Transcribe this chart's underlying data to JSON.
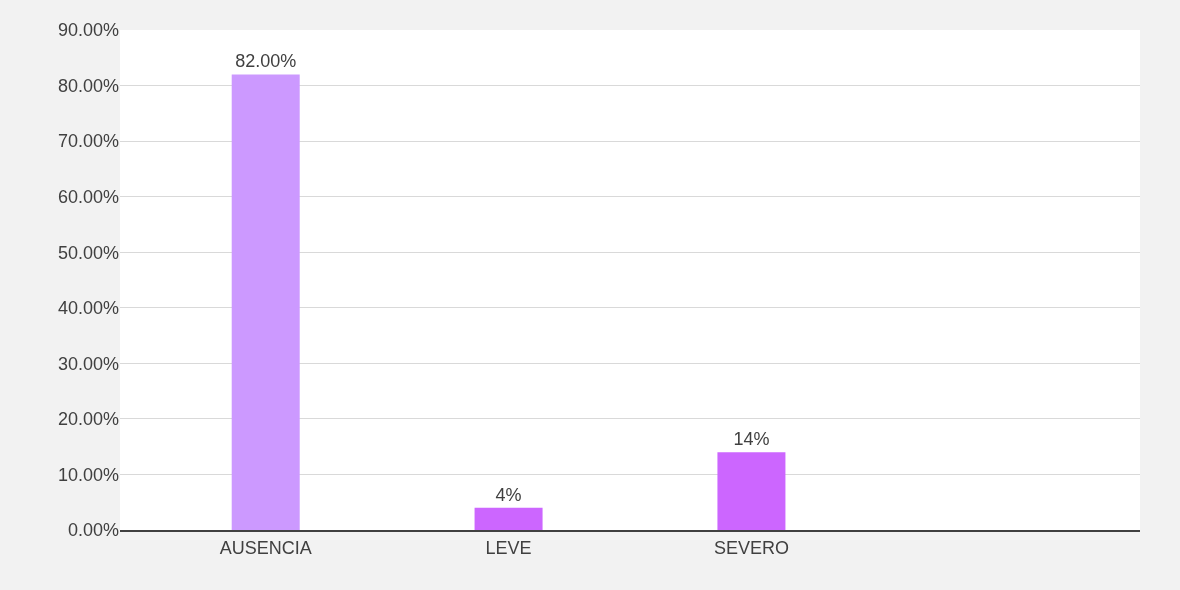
{
  "chart_data": {
    "type": "bar",
    "categories": [
      "AUSENCIA",
      "LEVE",
      "SEVERO",
      null
    ],
    "values": [
      82,
      4,
      14,
      null
    ],
    "colors": [
      "#cc99ff",
      "#cc66ff",
      "#cc66ff",
      "#cc66ff"
    ],
    "value_labels": [
      "82.00%",
      "4%",
      "14%",
      null
    ],
    "ylim": [
      0,
      90
    ],
    "yticks": [
      {
        "value": 0,
        "label": "0.00%"
      },
      {
        "value": 10,
        "label": "10.00%"
      },
      {
        "value": 20,
        "label": "20.00%"
      },
      {
        "value": 30,
        "label": "30.00%"
      },
      {
        "value": 40,
        "label": "40.00%"
      },
      {
        "value": 50,
        "label": "50.00%"
      },
      {
        "value": 60,
        "label": "60.00%"
      },
      {
        "value": 70,
        "label": "70.00%"
      },
      {
        "value": 80,
        "label": "80.00%"
      },
      {
        "value": 90,
        "label": "90.00%"
      }
    ],
    "grid": "y"
  }
}
